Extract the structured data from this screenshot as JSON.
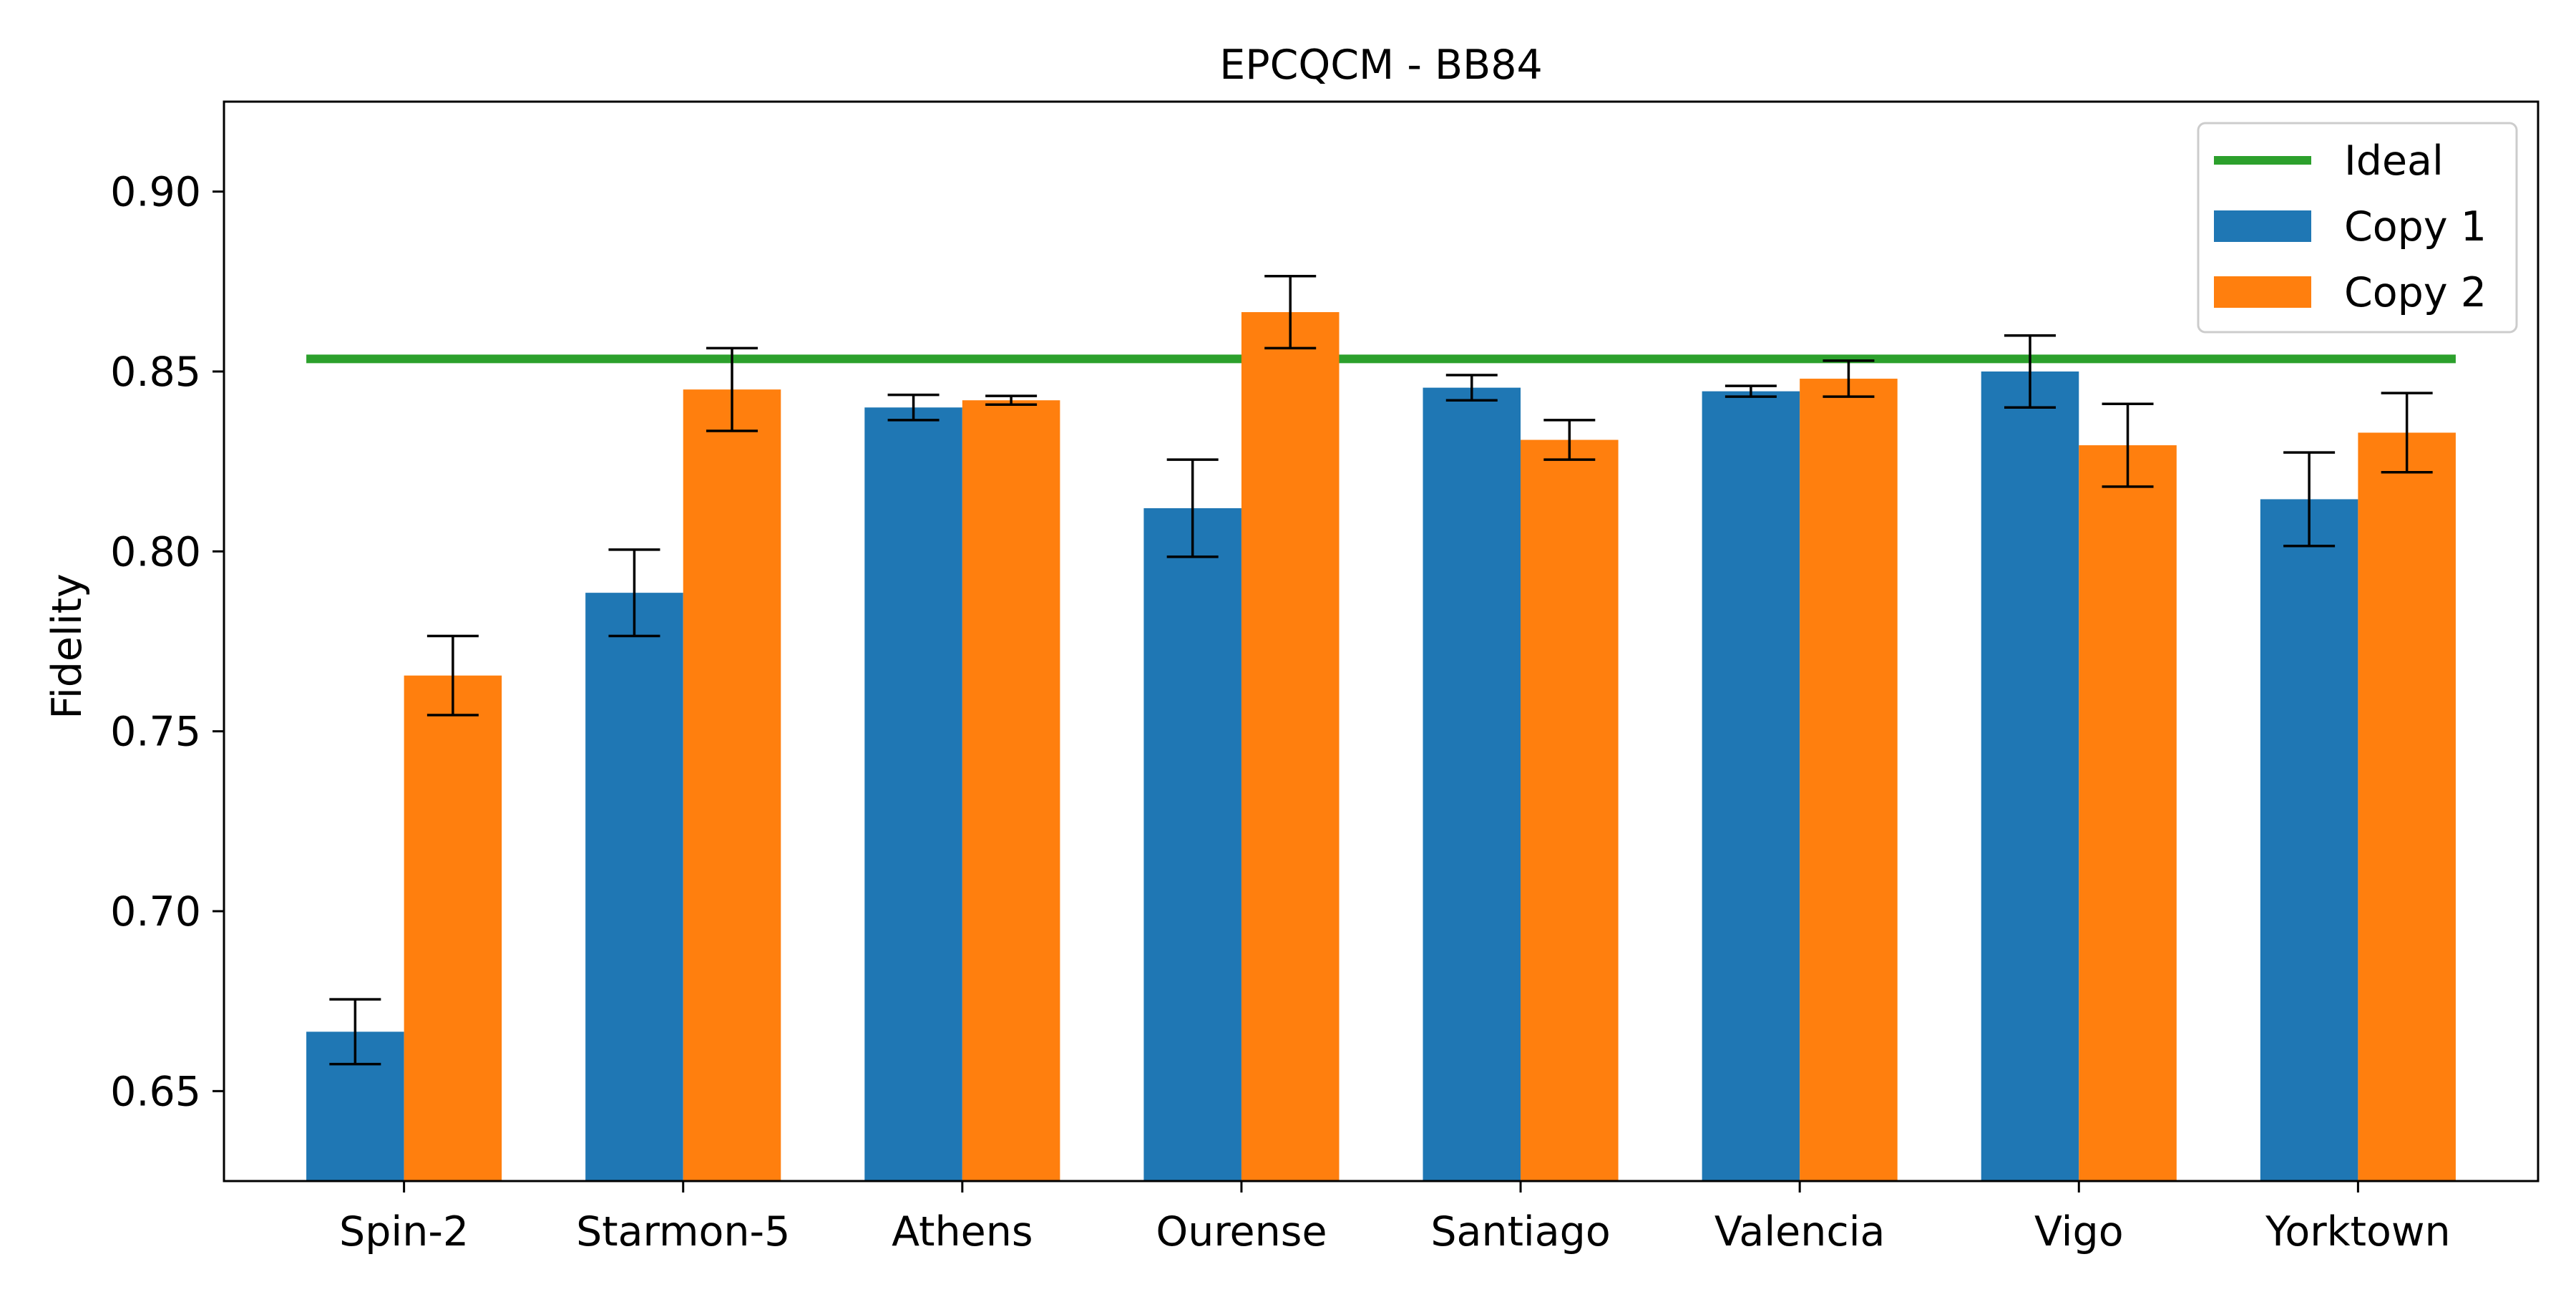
{
  "chart_data": {
    "type": "bar",
    "title": "EPCQCM - BB84",
    "xlabel": "",
    "ylabel": "Fidelity",
    "ylim": [
      0.625,
      0.925
    ],
    "yticks": [
      "0.65",
      "0.70",
      "0.75",
      "0.80",
      "0.85",
      "0.90"
    ],
    "categories": [
      "Spin-2",
      "Starmon-5",
      "Athens",
      "Ourense",
      "Santiago",
      "Valencia",
      "Vigo",
      "Yorktown"
    ],
    "series": [
      {
        "name": "Copy 1",
        "color": "#1f77b4",
        "values": [
          0.6665,
          0.7885,
          0.84,
          0.812,
          0.8455,
          0.8445,
          0.85,
          0.8145
        ],
        "errors": [
          0.009,
          0.012,
          0.0035,
          0.0135,
          0.0035,
          0.0015,
          0.01,
          0.013
        ]
      },
      {
        "name": "Copy 2",
        "color": "#ff7f0e",
        "values": [
          0.7655,
          0.845,
          0.842,
          0.8665,
          0.831,
          0.848,
          0.8295,
          0.833
        ],
        "errors": [
          0.011,
          0.0115,
          0.0012,
          0.01,
          0.0055,
          0.005,
          0.0115,
          0.011
        ]
      }
    ],
    "reference_line": {
      "name": "Ideal",
      "value": 0.8535,
      "color": "#2ca02c"
    },
    "legend": {
      "position": "top-right",
      "items": [
        {
          "label": "Ideal",
          "kind": "line",
          "color": "#2ca02c"
        },
        {
          "label": "Copy 1",
          "kind": "patch",
          "color": "#1f77b4"
        },
        {
          "label": "Copy 2",
          "kind": "patch",
          "color": "#ff7f0e"
        }
      ]
    },
    "grid": false
  }
}
